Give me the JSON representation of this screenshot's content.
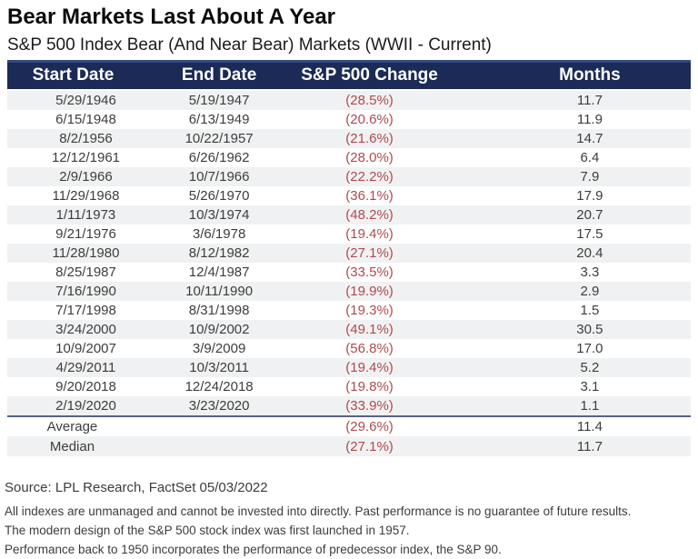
{
  "page": {
    "title": "Bear Markets Last About A Year",
    "subtitle": "S&P 500 Index Bear (And Near Bear) Markets (WWII - Current)"
  },
  "chart_data": {
    "type": "table",
    "title": "Bear Markets Last About A Year",
    "subtitle": "S&P 500 Index Bear (And Near Bear) Markets (WWII - Current)",
    "columns": [
      "Start Date",
      "End Date",
      "S&P 500 Change",
      "Months"
    ],
    "rows": [
      {
        "start": "5/29/1946",
        "end": "5/19/1947",
        "change": "(28.5%)",
        "months": "11.7"
      },
      {
        "start": "6/15/1948",
        "end": "6/13/1949",
        "change": "(20.6%)",
        "months": "11.9"
      },
      {
        "start": "8/2/1956",
        "end": "10/22/1957",
        "change": "(21.6%)",
        "months": "14.7"
      },
      {
        "start": "12/12/1961",
        "end": "6/26/1962",
        "change": "(28.0%)",
        "months": "6.4"
      },
      {
        "start": "2/9/1966",
        "end": "10/7/1966",
        "change": "(22.2%)",
        "months": "7.9"
      },
      {
        "start": "11/29/1968",
        "end": "5/26/1970",
        "change": "(36.1%)",
        "months": "17.9"
      },
      {
        "start": "1/11/1973",
        "end": "10/3/1974",
        "change": "(48.2%)",
        "months": "20.7"
      },
      {
        "start": "9/21/1976",
        "end": "3/6/1978",
        "change": "(19.4%)",
        "months": "17.5"
      },
      {
        "start": "11/28/1980",
        "end": "8/12/1982",
        "change": "(27.1%)",
        "months": "20.4"
      },
      {
        "start": "8/25/1987",
        "end": "12/4/1987",
        "change": "(33.5%)",
        "months": "3.3"
      },
      {
        "start": "7/16/1990",
        "end": "10/11/1990",
        "change": "(19.9%)",
        "months": "2.9"
      },
      {
        "start": "7/17/1998",
        "end": "8/31/1998",
        "change": "(19.3%)",
        "months": "1.5"
      },
      {
        "start": "3/24/2000",
        "end": "10/9/2002",
        "change": "(49.1%)",
        "months": "30.5"
      },
      {
        "start": "10/9/2007",
        "end": "3/9/2009",
        "change": "(56.8%)",
        "months": "17.0"
      },
      {
        "start": "4/29/2011",
        "end": "10/3/2011",
        "change": "(19.4%)",
        "months": "5.2"
      },
      {
        "start": "9/20/2018",
        "end": "12/24/2018",
        "change": "(19.8%)",
        "months": "3.1"
      },
      {
        "start": "2/19/2020",
        "end": "3/23/2020",
        "change": "(33.9%)",
        "months": "1.1"
      }
    ],
    "summary": [
      {
        "label": "Average",
        "change": "(29.6%)",
        "months": "11.4"
      },
      {
        "label": "Median",
        "change": "(27.1%)",
        "months": "11.7"
      }
    ],
    "layout": {
      "header_bg": "#1b2a56",
      "header_text": "#ffffff",
      "row_alt_bg": "#f0f1f2",
      "negative_color": "#b04a4e",
      "body_text": "#3d3d3d"
    }
  },
  "footer": {
    "source": "Source: LPL Research, FactSet 05/03/2022",
    "notes": [
      "All indexes are unmanaged and cannot be invested into directly. Past performance is no guarantee of future results.",
      "The modern design of the S&P 500 stock index was first launched in 1957.",
      "Performance back to 1950 incorporates the performance of predecessor index, the S&P 90."
    ]
  }
}
